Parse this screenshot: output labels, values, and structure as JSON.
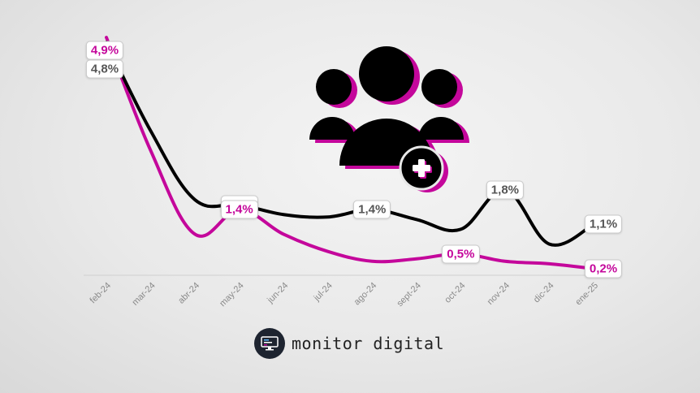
{
  "chart_data": {
    "type": "line",
    "categories": [
      "feb-24",
      "mar-24",
      "abr-24",
      "may-24",
      "jun-24",
      "jul-24",
      "ago-24",
      "sept-24",
      "oct-24",
      "nov-24",
      "dic-24",
      "ene-25"
    ],
    "series": [
      {
        "color": "#000000",
        "values": [
          4.8,
          3.0,
          1.6,
          1.5,
          1.3,
          1.25,
          1.4,
          1.2,
          1.0,
          1.8,
          0.7,
          1.1
        ]
      },
      {
        "color": "#c4079b",
        "values": [
          4.9,
          2.6,
          0.9,
          1.4,
          0.9,
          0.55,
          0.35,
          0.4,
          0.5,
          0.35,
          0.3,
          0.2
        ]
      }
    ],
    "data_labels": [
      {
        "series": 1,
        "index": 0,
        "text": "4,9%"
      },
      {
        "series": 0,
        "index": 0,
        "text": "4,8%"
      },
      {
        "series": 0,
        "index": 3,
        "text": "1,5%"
      },
      {
        "series": 1,
        "index": 3,
        "text": "1,4%"
      },
      {
        "series": 0,
        "index": 6,
        "text": "1,4%"
      },
      {
        "series": 1,
        "index": 8,
        "text": "0,5%"
      },
      {
        "series": 0,
        "index": 9,
        "text": "1,8%"
      },
      {
        "series": 0,
        "index": 11,
        "text": "1,1%"
      },
      {
        "series": 1,
        "index": 11,
        "text": "0,2%"
      }
    ],
    "ylim": [
      0,
      5
    ],
    "grid": false,
    "legend": "none"
  },
  "icon": {
    "name": "users-add-icon",
    "fill": "#000000",
    "shadow": "#c4079b"
  },
  "brand": {
    "name": "monitor digital",
    "icon": "monitor-icon"
  }
}
